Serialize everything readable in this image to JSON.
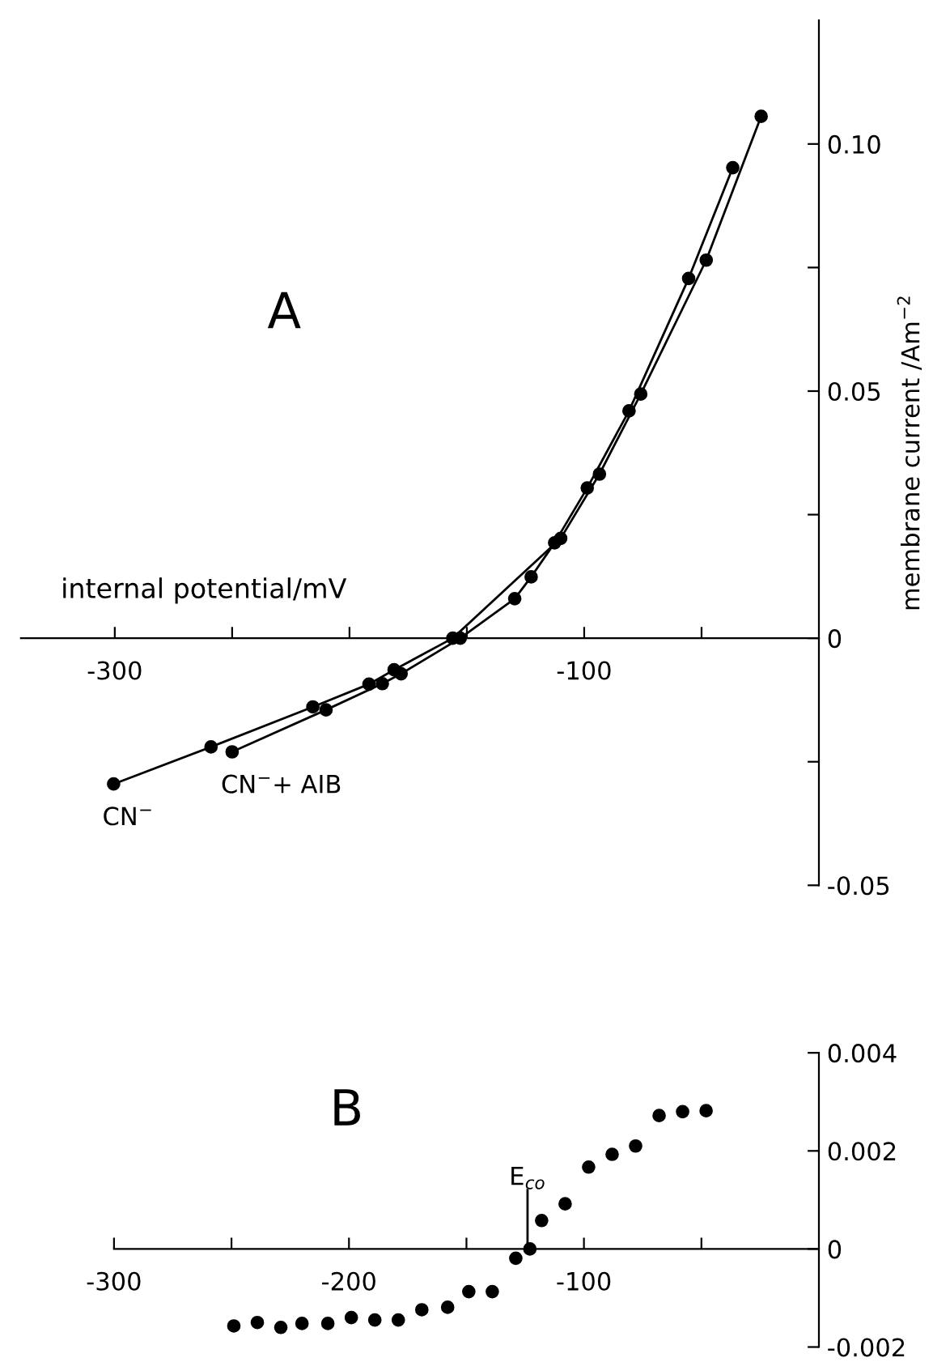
{
  "chart_data": [
    {
      "type": "line",
      "title": "A",
      "xlabel": "internal potential/mV",
      "ylabel": "membrane current /Am$^{−2}$",
      "xlim": [
        -340,
        0
      ],
      "xticks": [
        {
          "value": -300,
          "label": "-300"
        },
        {
          "value": -250,
          "label": null
        },
        {
          "value": -200,
          "label": null
        },
        {
          "value": -150,
          "label": null
        },
        {
          "value": -100,
          "label": "-100"
        },
        {
          "value": -50,
          "label": null
        }
      ],
      "ylim": [
        -0.05,
        0.125
      ],
      "yticks": [
        {
          "value": -0.05,
          "label": "-0.05"
        },
        {
          "value": -0.025,
          "label": null
        },
        {
          "value": 0,
          "label": "0"
        },
        {
          "value": 0.025,
          "label": null
        },
        {
          "value": 0.05,
          "label": "0.05"
        },
        {
          "value": 0.075,
          "label": null
        },
        {
          "value": 0.1,
          "label": "0.10"
        }
      ],
      "marker": "circle",
      "grid": false,
      "legend": false,
      "series": [
        {
          "name": "CN$^{−}$",
          "color": "#000000",
          "x": [
            -300.5,
            -259,
            -215.6,
            -191.7,
            -181,
            -156,
            -110,
            -93.5,
            -75.9,
            -48,
            -24.6
          ],
          "values": [
            -0.0295,
            -0.022,
            -0.0139,
            -0.0093,
            -0.0064,
            0,
            0.0202,
            0.0332,
            0.0494,
            0.0765,
            0.1056
          ]
        },
        {
          "name": "CN$^{−}$+ AIB",
          "color": "#000000",
          "x": [
            -250,
            -210,
            -186,
            -178,
            -152.8,
            -129.6,
            -122.6,
            -112.6,
            -98.7,
            -80.9,
            -55.5,
            -36.7
          ],
          "values": [
            -0.023,
            -0.0145,
            -0.0092,
            -0.0072,
            0,
            0.008,
            0.0124,
            0.0193,
            0.0304,
            0.046,
            0.0728,
            0.0952
          ]
        }
      ]
    },
    {
      "type": "scatter",
      "title": "B",
      "xlim": [
        -300,
        0
      ],
      "xticks": [
        {
          "value": -300,
          "label": "-300"
        },
        {
          "value": -250,
          "label": null
        },
        {
          "value": -200,
          "label": "-200"
        },
        {
          "value": -150,
          "label": null
        },
        {
          "value": -100,
          "label": "-100"
        },
        {
          "value": -50,
          "label": null
        }
      ],
      "ylim": [
        -0.002,
        0.004
      ],
      "yticks": [
        {
          "value": -0.002,
          "label": "-0.002"
        },
        {
          "value": 0,
          "label": "0"
        },
        {
          "value": 0.002,
          "label": "0.002"
        },
        {
          "value": 0.004,
          "label": "0.004"
        }
      ],
      "marker": "circle",
      "grid": false,
      "legend": false,
      "ref_lines": [
        {
          "axis": "x",
          "value": -124,
          "label": "E$_{co}$"
        }
      ],
      "series": [
        {
          "color": "#000000",
          "x": [
            -249,
            -239,
            -229,
            -220,
            -209,
            -199,
            -189,
            -179,
            -169,
            -158,
            -149,
            -139,
            -129,
            -123,
            -118,
            -108,
            -98,
            -88,
            -78,
            -68,
            -58,
            -48
          ],
          "values": [
            -0.00157,
            -0.0015,
            -0.0016,
            -0.00152,
            -0.00152,
            -0.0014,
            -0.00145,
            -0.00145,
            -0.00124,
            -0.00119,
            -0.00087,
            -0.00087,
            -0.00019,
            0.0,
            0.00058,
            0.00092,
            0.00167,
            0.00193,
            0.0021,
            0.00272,
            0.0028,
            0.00282
          ]
        }
      ]
    }
  ]
}
